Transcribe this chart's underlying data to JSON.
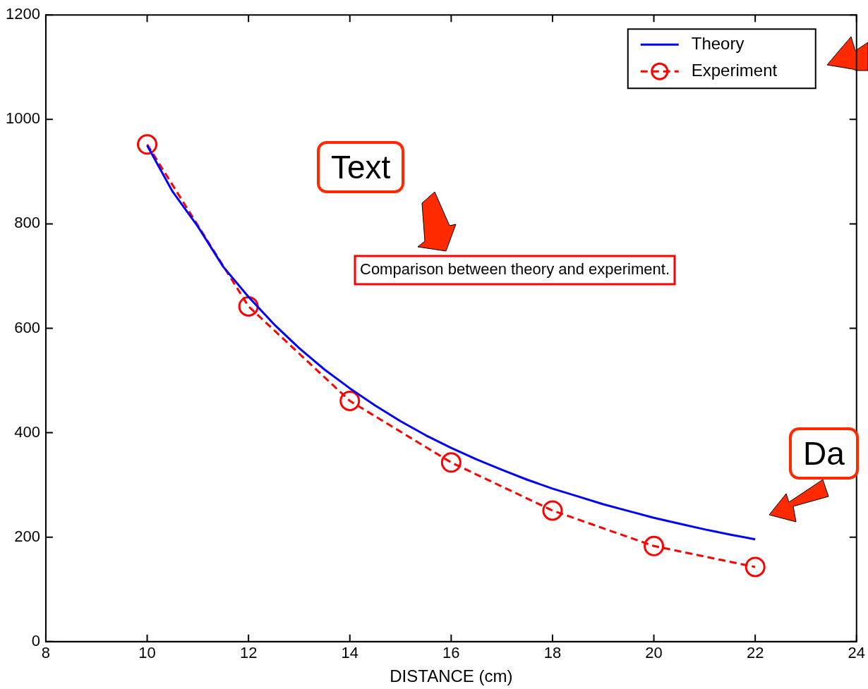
{
  "chart_data": {
    "type": "line",
    "xlabel": "DISTANCE (cm)",
    "xlim": [
      8,
      24
    ],
    "xticks": [
      8,
      10,
      12,
      14,
      16,
      18,
      20,
      22,
      24
    ],
    "ylim": [
      0,
      1200
    ],
    "yticks": [
      0,
      200,
      400,
      600,
      800,
      1000,
      1200
    ],
    "grid": false,
    "legend": "top right",
    "annotations": [
      "Comparison between theory and experiment.",
      "Text",
      "Da"
    ],
    "series": [
      {
        "name": "Theory",
        "color": "#0000ff",
        "line_style": "solid",
        "marker": "none",
        "x": [
          10,
          10.5,
          11,
          11.5,
          12,
          12.5,
          13,
          13.5,
          14,
          14.5,
          15,
          15.5,
          16,
          16.5,
          17,
          17.5,
          18,
          18.5,
          19,
          19.5,
          20,
          20.5,
          21,
          21.5,
          22
        ],
        "values": [
          950,
          862,
          795,
          718,
          660,
          608,
          562,
          521,
          485,
          452,
          422,
          395,
          371,
          349,
          329,
          310,
          293,
          278,
          263,
          250,
          237,
          226,
          215,
          205,
          196
        ]
      },
      {
        "name": "Experiment",
        "color": "#ff0000",
        "line_style": "dashed",
        "marker": "circle",
        "x": [
          10,
          12,
          14,
          16,
          18,
          20,
          22
        ],
        "values": [
          952,
          642,
          461,
          343,
          251,
          183,
          143
        ]
      }
    ]
  }
}
